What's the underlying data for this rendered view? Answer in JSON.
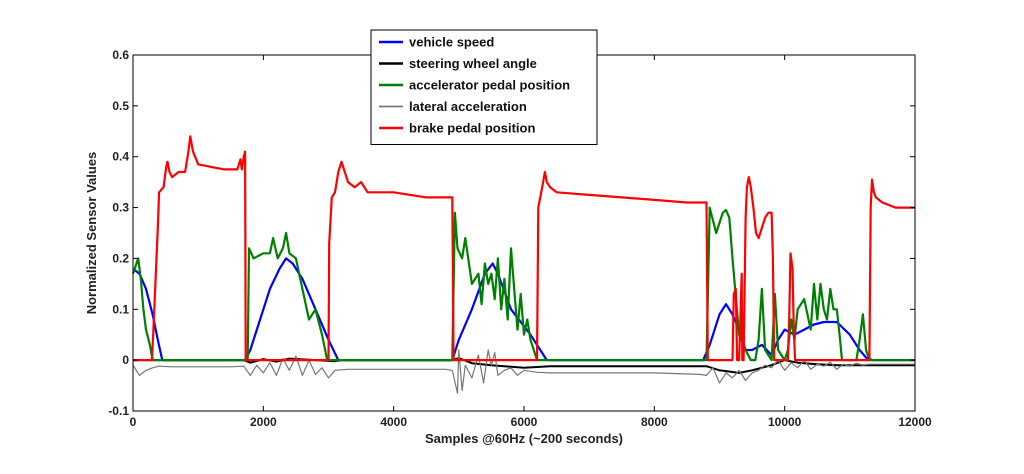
{
  "chart_data": {
    "type": "line",
    "title": "",
    "xlabel": "Samples @60Hz (~200 seconds)",
    "ylabel": "Normalized Sensor Values",
    "xlim": [
      0,
      12000
    ],
    "ylim": [
      -0.1,
      0.6
    ],
    "xticks": [
      0,
      2000,
      4000,
      6000,
      8000,
      10000,
      12000
    ],
    "yticks": [
      -0.1,
      0,
      0.1,
      0.2,
      0.3,
      0.4,
      0.5,
      0.6
    ],
    "xtick_labels": [
      "0",
      "2000",
      "4000",
      "6000",
      "8000",
      "10000",
      "12000"
    ],
    "ytick_labels": [
      "-0.1",
      "0",
      "0.1",
      "0.2",
      "0.3",
      "0.4",
      "0.5",
      "0.6"
    ],
    "grid": false,
    "legend_position": "top-center",
    "series": [
      {
        "name": "vehicle speed",
        "color": "#0000ff",
        "x": [
          0,
          100,
          200,
          300,
          380,
          450,
          1720,
          1800,
          1950,
          2100,
          2250,
          2350,
          2450,
          2600,
          2800,
          3000,
          3150,
          4900,
          5000,
          5200,
          5400,
          5520,
          5600,
          5800,
          6100,
          6200,
          6350,
          8750,
          8850,
          9000,
          9100,
          9200,
          9300,
          9400,
          9500,
          9650,
          9800,
          9900,
          10000,
          10150,
          10300,
          10450,
          10600,
          10800,
          11000,
          11150,
          11250,
          11350,
          12000
        ],
        "y": [
          0.18,
          0.17,
          0.14,
          0.09,
          0.04,
          0.0,
          0.0,
          0.02,
          0.08,
          0.14,
          0.18,
          0.2,
          0.19,
          0.16,
          0.1,
          0.04,
          0.0,
          0.0,
          0.04,
          0.1,
          0.17,
          0.19,
          0.17,
          0.1,
          0.05,
          0.03,
          0.0,
          0.0,
          0.03,
          0.09,
          0.11,
          0.09,
          0.06,
          0.02,
          0.02,
          0.03,
          0.01,
          0.04,
          0.06,
          0.05,
          0.06,
          0.07,
          0.075,
          0.075,
          0.05,
          0.02,
          0.005,
          0.0,
          0.0
        ]
      },
      {
        "name": "steering wheel angle",
        "color": "#000000",
        "x": [
          0,
          1700,
          1800,
          2000,
          2200,
          2400,
          3100,
          3200,
          4900,
          5000,
          5200,
          5500,
          6000,
          6400,
          8800,
          9000,
          9300,
          9500,
          9800,
          10000,
          10200,
          10500,
          10800,
          11000,
          11300,
          11400,
          12000
        ],
        "y": [
          0.0,
          0.0,
          -0.005,
          0.002,
          -0.003,
          0.003,
          -0.002,
          0.0,
          0.0,
          0.004,
          -0.006,
          -0.01,
          -0.015,
          -0.012,
          -0.012,
          -0.02,
          -0.025,
          -0.02,
          -0.01,
          0.0,
          -0.005,
          -0.008,
          -0.01,
          -0.01,
          -0.01,
          -0.01,
          -0.01
        ]
      },
      {
        "name": "accelerator pedal position",
        "color": "#008000",
        "x": [
          0,
          80,
          120,
          160,
          200,
          260,
          300,
          1760,
          1780,
          1850,
          2000,
          2100,
          2150,
          2220,
          2300,
          2350,
          2400,
          2500,
          2600,
          2700,
          2800,
          2900,
          2950,
          2980,
          3100,
          4900,
          4940,
          4980,
          5050,
          5100,
          5200,
          5300,
          5350,
          5400,
          5450,
          5500,
          5550,
          5600,
          5650,
          5700,
          5750,
          5800,
          5850,
          5900,
          5950,
          6000,
          6050,
          6100,
          6150,
          6200,
          8800,
          8850,
          8950,
          9050,
          9100,
          9150,
          9200,
          9300,
          9400,
          9480,
          9550,
          9600,
          9650,
          9700,
          9800,
          9850,
          9900,
          10000,
          10050,
          10100,
          10150,
          10200,
          10300,
          10400,
          10450,
          10500,
          10550,
          10600,
          10650,
          10700,
          10750,
          10800,
          10850,
          10880,
          11000,
          11100,
          11150,
          11200,
          11250,
          11300,
          12000
        ],
        "y": [
          0.17,
          0.2,
          0.16,
          0.1,
          0.06,
          0.03,
          0.0,
          0.0,
          0.22,
          0.2,
          0.21,
          0.21,
          0.24,
          0.2,
          0.22,
          0.25,
          0.21,
          0.2,
          0.14,
          0.08,
          0.1,
          0.05,
          0.02,
          0.0,
          0.0,
          0.0,
          0.29,
          0.22,
          0.2,
          0.24,
          0.15,
          0.17,
          0.11,
          0.19,
          0.15,
          0.17,
          0.12,
          0.2,
          0.1,
          0.16,
          0.08,
          0.22,
          0.14,
          0.06,
          0.13,
          0.05,
          0.08,
          0.04,
          0.02,
          0.0,
          0.0,
          0.3,
          0.25,
          0.29,
          0.295,
          0.28,
          0.2,
          0.05,
          0.02,
          0.0,
          0.0,
          0.04,
          0.14,
          0.02,
          0.0,
          0.13,
          0.02,
          0.0,
          0.02,
          0.08,
          0.04,
          0.1,
          0.12,
          0.06,
          0.15,
          0.08,
          0.15,
          0.1,
          0.08,
          0.14,
          0.1,
          0.1,
          0.04,
          0.0,
          0.0,
          0.0,
          0.04,
          0.09,
          0.02,
          0.0,
          0.0
        ]
      },
      {
        "name": "lateral acceleration",
        "color": "#777777",
        "x": [
          0,
          100,
          200,
          300,
          400,
          600,
          1000,
          1500,
          1700,
          1800,
          1900,
          2000,
          2100,
          2200,
          2300,
          2400,
          2500,
          2600,
          2700,
          2800,
          2900,
          3000,
          3100,
          3300,
          4000,
          4800,
          4900,
          4980,
          5000,
          5050,
          5100,
          5200,
          5300,
          5380,
          5450,
          5500,
          5550,
          5600,
          5700,
          5800,
          5900,
          6000,
          6200,
          6400,
          8000,
          8700,
          8800,
          8900,
          9000,
          9100,
          9200,
          9300,
          9400,
          9500,
          9600,
          9700,
          9800,
          9900,
          10000,
          10100,
          10200,
          10300,
          10400,
          10500,
          10600,
          10700,
          10800,
          10900,
          11000,
          11100,
          11200,
          11300,
          12000
        ],
        "y": [
          -0.01,
          -0.03,
          -0.02,
          -0.015,
          -0.012,
          -0.013,
          -0.013,
          -0.013,
          -0.012,
          -0.03,
          -0.01,
          -0.025,
          -0.005,
          -0.03,
          0.003,
          -0.02,
          0.008,
          -0.03,
          0.0,
          -0.028,
          -0.015,
          -0.035,
          -0.02,
          -0.018,
          -0.018,
          -0.018,
          -0.02,
          -0.065,
          0.02,
          -0.06,
          -0.01,
          -0.035,
          0.01,
          -0.045,
          0.02,
          -0.01,
          0.015,
          -0.03,
          -0.02,
          -0.015,
          -0.03,
          -0.02,
          -0.024,
          -0.025,
          -0.025,
          -0.028,
          -0.03,
          -0.015,
          -0.045,
          -0.025,
          -0.035,
          -0.02,
          -0.04,
          -0.025,
          -0.02,
          -0.01,
          -0.015,
          0.0,
          -0.02,
          -0.005,
          -0.015,
          0.0,
          -0.018,
          -0.008,
          -0.012,
          -0.004,
          -0.018,
          -0.008,
          -0.012,
          -0.006,
          -0.01,
          -0.008,
          -0.008
        ]
      },
      {
        "name": "brake pedal position",
        "color": "#ff0000",
        "x": [
          0,
          290,
          310,
          380,
          400,
          470,
          510,
          530,
          560,
          600,
          700,
          800,
          850,
          880,
          920,
          1000,
          1200,
          1400,
          1600,
          1650,
          1670,
          1700,
          1720,
          1730,
          3000,
          3010,
          3050,
          3100,
          3150,
          3200,
          3300,
          3400,
          3500,
          3600,
          4000,
          4500,
          4900,
          4920,
          6200,
          6220,
          6280,
          6320,
          6350,
          6400,
          6500,
          7000,
          7500,
          8000,
          8500,
          8800,
          8820,
          9200,
          9220,
          9250,
          9270,
          9300,
          9320,
          9340,
          9350,
          9370,
          9400,
          9420,
          9450,
          9480,
          9520,
          9560,
          9600,
          9650,
          9700,
          9750,
          9800,
          9820,
          9840,
          9850,
          9870,
          10050,
          10070,
          10090,
          10120,
          10140,
          10160,
          11300,
          11320,
          11340,
          11370,
          11400,
          11500,
          11700,
          12000
        ],
        "y": [
          0.0,
          0.0,
          0.05,
          0.26,
          0.33,
          0.34,
          0.38,
          0.39,
          0.37,
          0.36,
          0.37,
          0.37,
          0.41,
          0.44,
          0.41,
          0.385,
          0.38,
          0.375,
          0.375,
          0.395,
          0.375,
          0.4,
          0.41,
          0.0,
          0.0,
          0.23,
          0.32,
          0.33,
          0.37,
          0.39,
          0.35,
          0.34,
          0.35,
          0.33,
          0.33,
          0.32,
          0.32,
          0.0,
          0.0,
          0.3,
          0.34,
          0.37,
          0.35,
          0.34,
          0.33,
          0.325,
          0.32,
          0.315,
          0.31,
          0.31,
          0.0,
          0.0,
          0.13,
          0.14,
          0.0,
          0.0,
          0.08,
          0.17,
          0.0,
          0.0,
          0.28,
          0.34,
          0.36,
          0.34,
          0.3,
          0.25,
          0.24,
          0.26,
          0.28,
          0.29,
          0.29,
          0.2,
          0.0,
          0.0,
          0.0,
          0.0,
          0.08,
          0.21,
          0.18,
          0.06,
          0.0,
          0.0,
          0.3,
          0.355,
          0.33,
          0.32,
          0.31,
          0.3,
          0.3
        ]
      }
    ]
  }
}
